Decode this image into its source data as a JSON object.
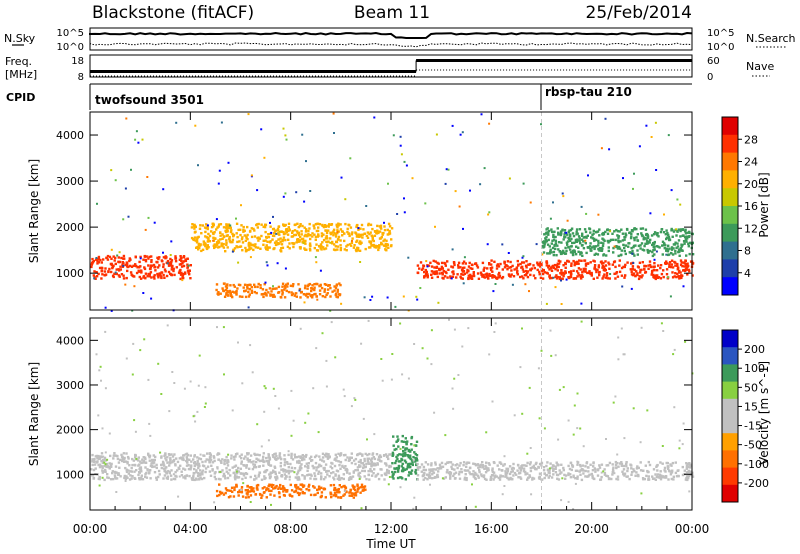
{
  "header": {
    "station": "Blackstone (fitACF)",
    "beam": "Beam 11",
    "date": "25/Feb/2014"
  },
  "nsky_panel": {
    "left_label": "N.Sky",
    "right_label": "N.Search",
    "left_ticks": [
      "10^5",
      "10^0"
    ],
    "right_ticks": [
      "10^5",
      "10^0"
    ]
  },
  "freq_panel": {
    "left_label": "Freq.",
    "left_unit": "[MHz]",
    "right_label": "Nave",
    "left_ticks": [
      "18",
      "8"
    ],
    "right_ticks": [
      "60",
      "0"
    ],
    "freq_level_mhz": [
      {
        "from_hour": 0,
        "to_hour": 13,
        "value": 10.5
      },
      {
        "from_hour": 13,
        "to_hour": 24,
        "value": 15.5
      }
    ]
  },
  "cpid": {
    "label": "CPID",
    "programs": [
      {
        "name": "twofsound 3501",
        "start_hour": 0
      },
      {
        "name": "rbsp-tau 210",
        "start_hour": 18
      }
    ]
  },
  "colors": {
    "power_scale": [
      "#0000ff",
      "#1e3faa",
      "#2f6f8f",
      "#3c9a5a",
      "#6cc24a",
      "#c8c800",
      "#ffb000",
      "#ff7800",
      "#ff3000",
      "#e00000"
    ],
    "velocity_scale": [
      "#0000c8",
      "#2a55c0",
      "#3c9a5a",
      "#88d040",
      "#c0c0c0",
      "#c0c0c0",
      "#ffa000",
      "#ff7000",
      "#ff3a00",
      "#e00000"
    ]
  },
  "chart_data": [
    {
      "type": "heatmap",
      "name_printed": "",
      "ylabel": "Slant Range [km]",
      "ylim": [
        200,
        4500
      ],
      "y_ticks": [
        1000,
        2000,
        3000,
        4000
      ],
      "xlim_hours": [
        0,
        24
      ],
      "colorbar": {
        "label": "Power [dB]",
        "tick_labels": [
          "4",
          "8",
          "12",
          "16",
          "20",
          "24",
          "28"
        ],
        "range": [
          0,
          32
        ]
      },
      "features": [
        {
          "kind": "band",
          "hours": [
            0,
            4
          ],
          "range_km": [
            900,
            1400
          ],
          "level": 26
        },
        {
          "kind": "band",
          "hours": [
            4,
            12
          ],
          "range_km": [
            1500,
            2100
          ],
          "level": 20
        },
        {
          "kind": "band",
          "hours": [
            5,
            10
          ],
          "range_km": [
            500,
            800
          ],
          "level": 24
        },
        {
          "kind": "band",
          "hours": [
            13,
            24
          ],
          "range_km": [
            900,
            1300
          ],
          "level": 28
        },
        {
          "kind": "band",
          "hours": [
            18,
            24
          ],
          "range_km": [
            1400,
            2000
          ],
          "level": 10
        }
      ]
    },
    {
      "type": "heatmap",
      "name_printed": "",
      "ylabel": "Slant Range [km]",
      "ylim": [
        200,
        4500
      ],
      "y_ticks": [
        1000,
        2000,
        3000,
        4000
      ],
      "xlim_hours": [
        0,
        24
      ],
      "xlabel": "Time UT",
      "x_ticks": [
        "00:00",
        "04:00",
        "08:00",
        "12:00",
        "16:00",
        "20:00",
        "00:00"
      ],
      "colorbar": {
        "label": "Velocity [m s^-1]",
        "tick_labels": [
          "200",
          "100",
          "50",
          "15",
          "-15",
          "-50",
          "-100",
          "-200"
        ],
        "range": [
          -250,
          250
        ]
      },
      "features": [
        {
          "kind": "band",
          "hours": [
            0,
            12
          ],
          "range_km": [
            900,
            1500
          ],
          "level": 0
        },
        {
          "kind": "band",
          "hours": [
            5,
            11
          ],
          "range_km": [
            500,
            800
          ],
          "level": -60
        },
        {
          "kind": "band",
          "hours": [
            12,
            13
          ],
          "range_km": [
            900,
            1900
          ],
          "level": 80
        },
        {
          "kind": "band",
          "hours": [
            13,
            24
          ],
          "range_km": [
            900,
            1300
          ],
          "level": 0
        }
      ]
    }
  ]
}
